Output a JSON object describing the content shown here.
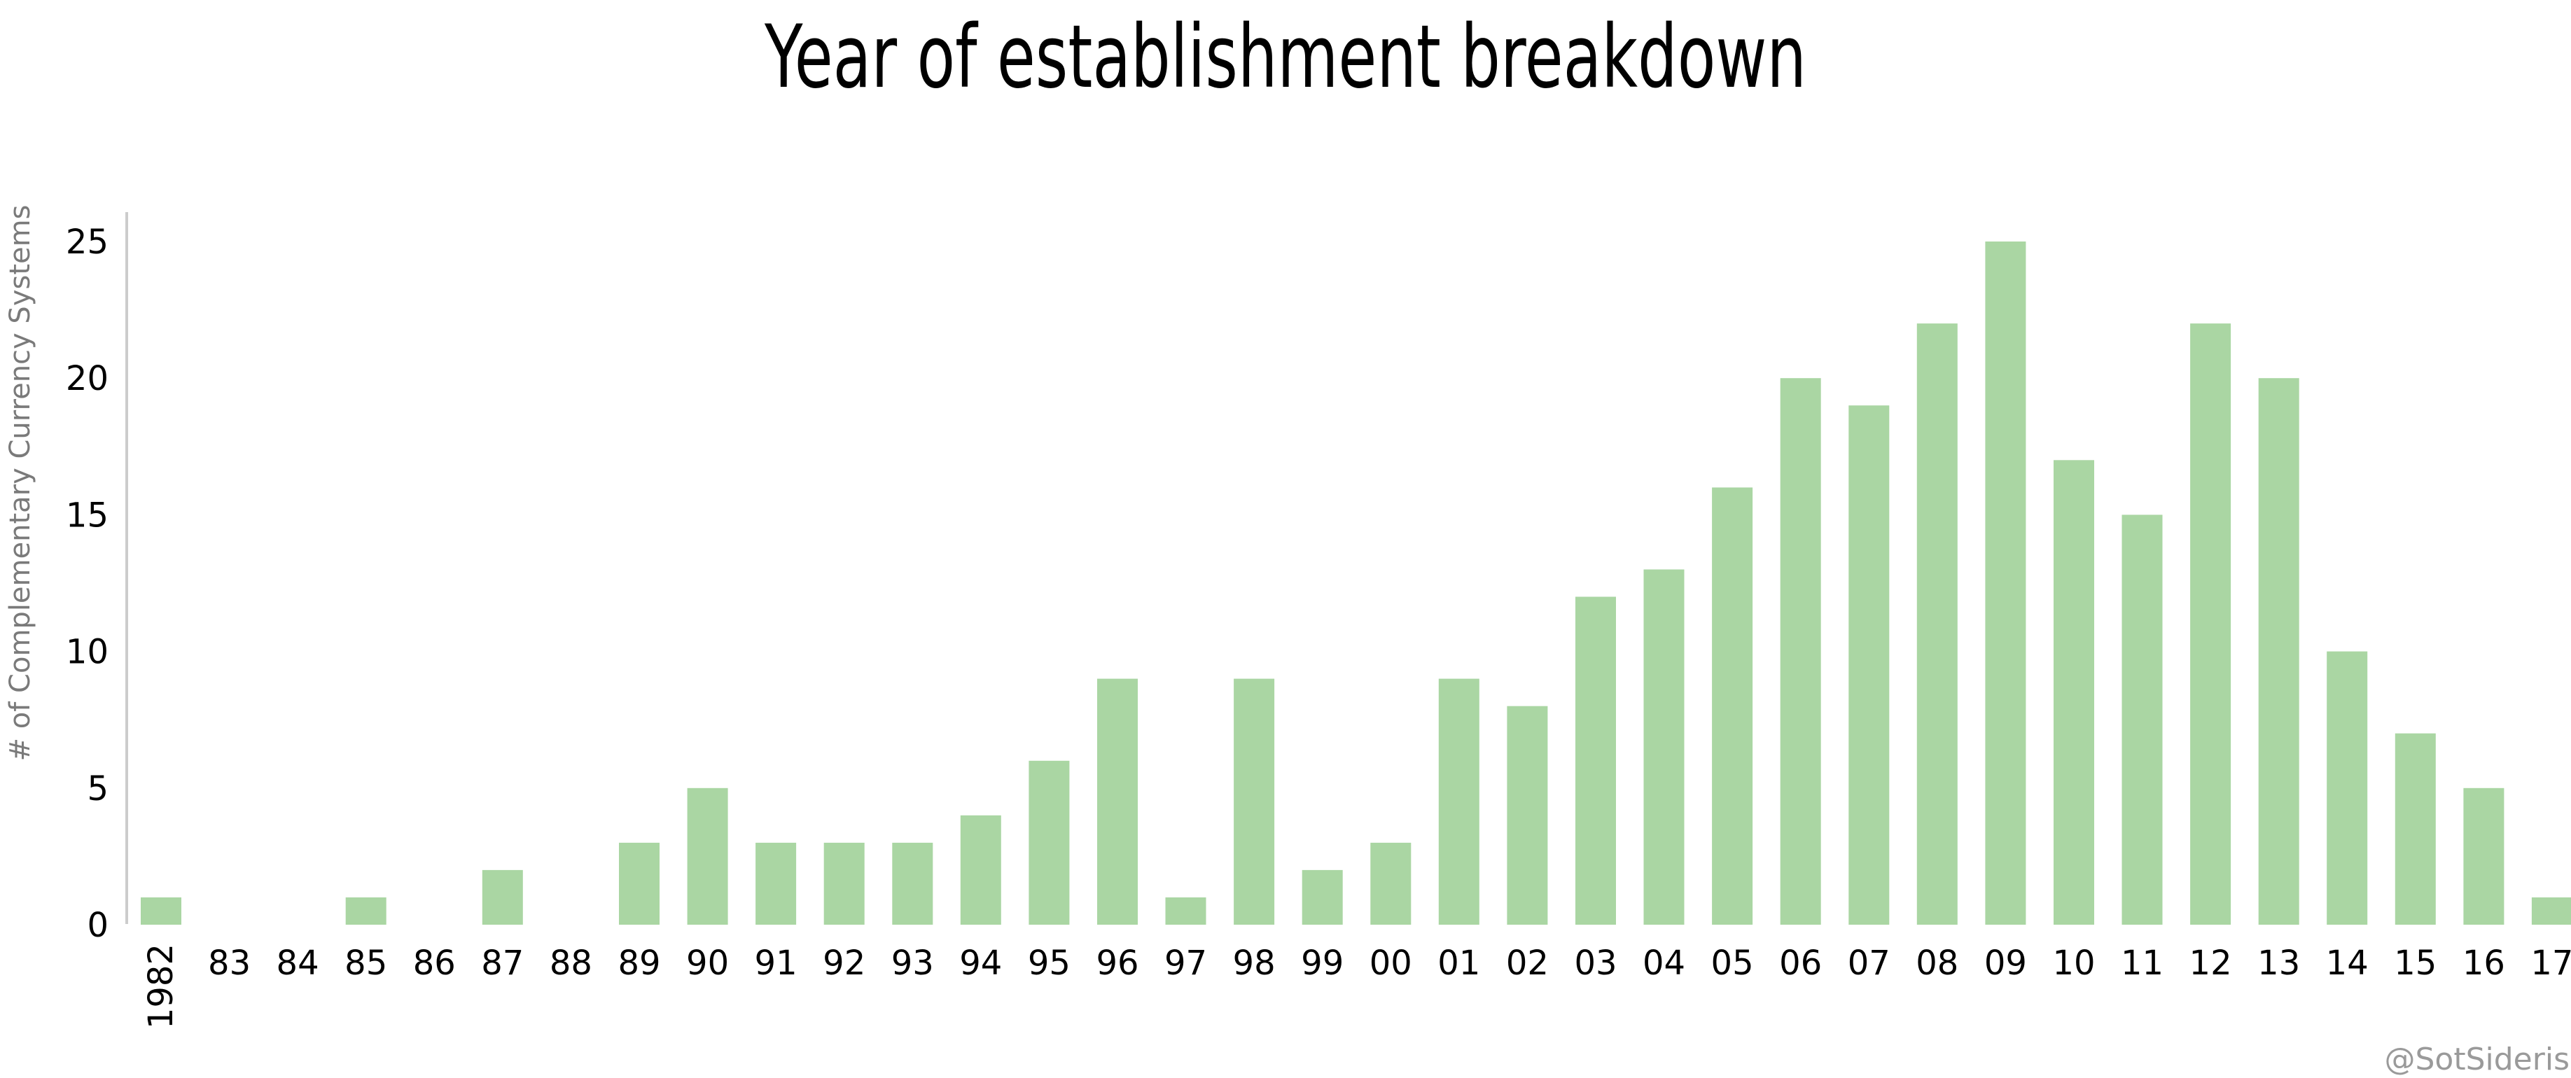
{
  "chart_data": {
    "type": "bar",
    "title": "Year of establishment breakdown",
    "ylabel": "# of Complementary Currency Systems",
    "xlabel": "",
    "categories": [
      "1982",
      "83",
      "84",
      "85",
      "86",
      "87",
      "88",
      "89",
      "90",
      "91",
      "92",
      "93",
      "94",
      "95",
      "96",
      "97",
      "98",
      "99",
      "00",
      "01",
      "02",
      "03",
      "04",
      "05",
      "06",
      "07",
      "08",
      "09",
      "10",
      "11",
      "12",
      "13",
      "14",
      "15",
      "16",
      "17"
    ],
    "values": [
      1,
      0,
      0,
      1,
      0,
      2,
      0,
      3,
      5,
      3,
      3,
      3,
      4,
      6,
      9,
      1,
      9,
      2,
      3,
      9,
      8,
      12,
      13,
      16,
      20,
      19,
      22,
      25,
      17,
      15,
      22,
      20,
      10,
      7,
      5,
      1
    ],
    "ylim": [
      0,
      26
    ],
    "yticks": [
      0,
      5,
      10,
      15,
      20,
      25
    ],
    "grid": false,
    "legend": "none",
    "bar_color": "#aad6a3",
    "axis_color": "#cccccc"
  },
  "credit": "@SotSideris"
}
